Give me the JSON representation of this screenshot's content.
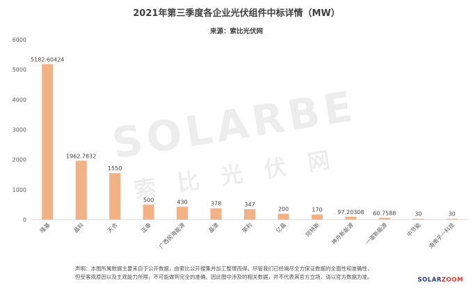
{
  "chart_data": {
    "type": "bar",
    "title": "2021年第三季度各企业光伏组件中标详情（MW）",
    "subtitle": "来源：索比光伏网",
    "categories": [
      "隆基",
      "晶科",
      "天合",
      "正泰",
      "广西民海能源",
      "晶澳",
      "英利",
      "亿晶",
      "阿特斯",
      "神舟新能源",
      "一道新能源",
      "中节能",
      "海南子一科技"
    ],
    "values": [
      5182.60424,
      1962.7832,
      1550,
      500,
      430,
      378,
      347,
      200,
      170,
      97.20308,
      60.7588,
      30,
      30
    ],
    "value_labels": [
      "5182.60424",
      "1962.7832",
      "1550",
      "500",
      "430",
      "378",
      "347",
      "200",
      "170",
      "97.20308",
      "60.7588",
      "30",
      "30"
    ],
    "ylim": [
      0,
      6000
    ],
    "yticks": [
      0,
      1000,
      2000,
      3000,
      4000,
      5000,
      6000
    ],
    "xlabel": "",
    "ylabel": "",
    "grid": false,
    "bar_color": "#F4B183"
  },
  "watermark": {
    "logo": "SOLARBE",
    "text": "索 比 光 伏 网"
  },
  "footer": {
    "disclaimer_line1": "声明：本图所属数据主要来自于公开数据，由索比公开搜集并加工整理而得。尽管我们已经竭尽全力保证数据的全面性和准确性，",
    "disclaimer_line2": "但受客观原因以及主观能力所限，不可能做到完全的准确。因此图中涉及的相关数据，并不代表其官方立场，请以官方数据为准。",
    "brand_main": "SOLAR",
    "brand_accent": "ZOOM"
  }
}
